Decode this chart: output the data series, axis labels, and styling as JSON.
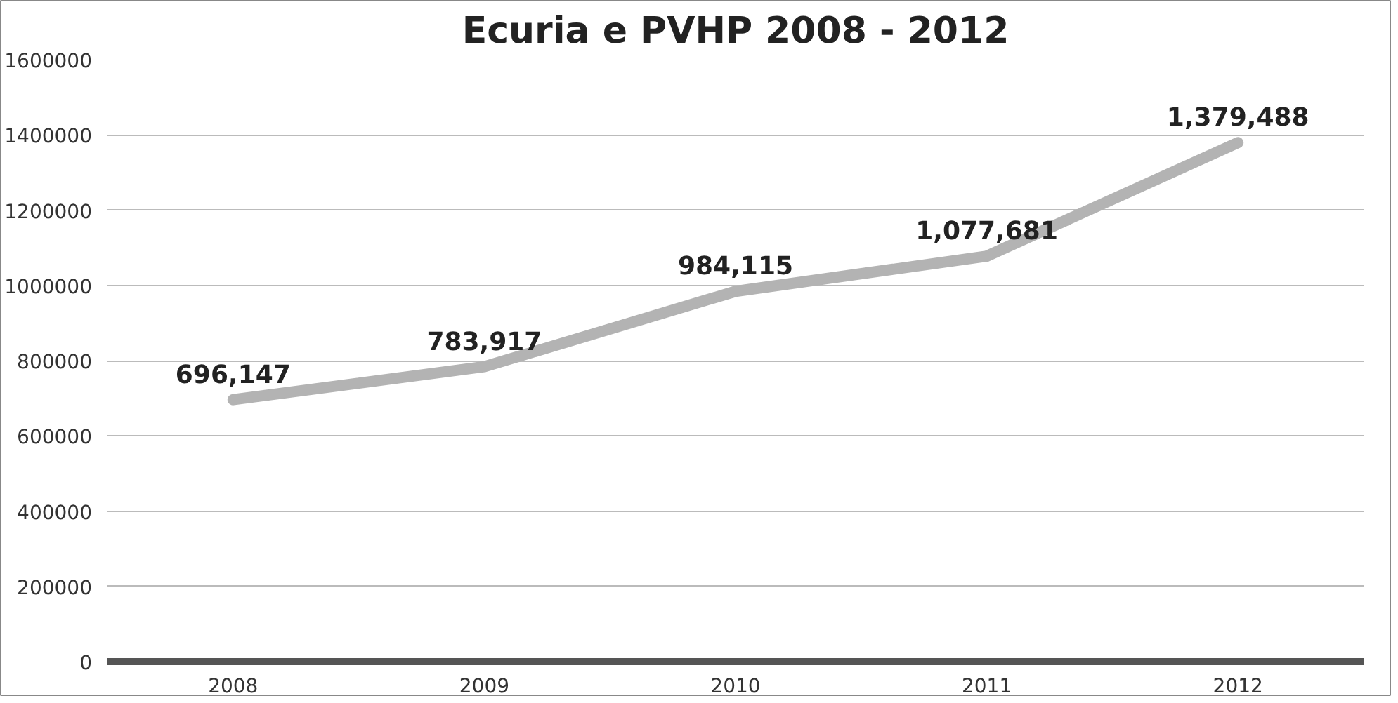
{
  "chart_data": {
    "type": "line",
    "title": "Ecuria e PVHP 2008 - 2012",
    "categories": [
      "2008",
      "2009",
      "2010",
      "2011",
      "2012"
    ],
    "series": [
      {
        "color": "#b3b3b3",
        "values": [
          696147,
          783917,
          984115,
          1077681,
          1379488
        ],
        "value_labels": [
          "696,147",
          "783,917",
          "984,115",
          "1,077,681",
          "1,379,488"
        ]
      }
    ],
    "ylim": [
      0,
      1600000
    ],
    "yticks": [
      0,
      200000,
      400000,
      600000,
      800000,
      1000000,
      1200000,
      1400000,
      1600000
    ],
    "grid": "y",
    "marker": "none",
    "line_style": "solid"
  }
}
